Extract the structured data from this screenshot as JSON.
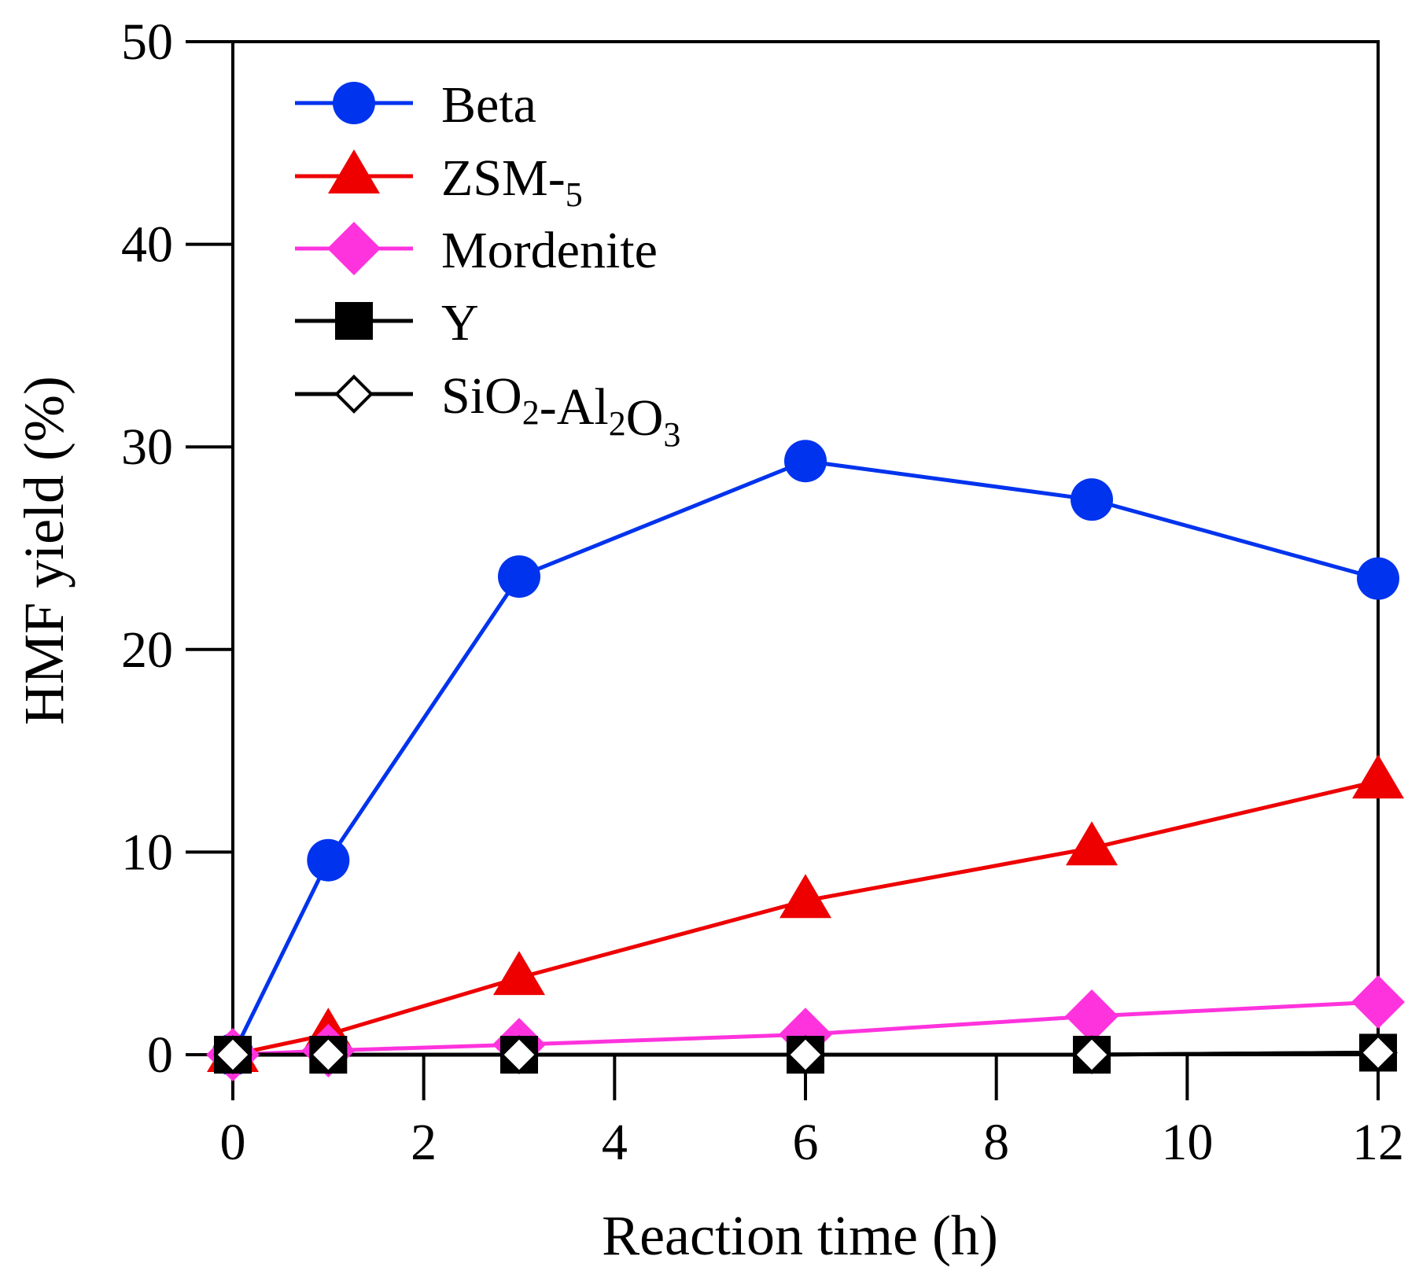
{
  "chart_data": {
    "type": "line",
    "title": "",
    "xlabel": "Reaction time (h)",
    "ylabel": "HMF yield (%)",
    "xlim": [
      0,
      12
    ],
    "ylim": [
      0,
      50
    ],
    "xticks": [
      0,
      2,
      4,
      6,
      8,
      10,
      12
    ],
    "yticks": [
      0,
      10,
      20,
      30,
      40,
      50
    ],
    "grid": false,
    "legend_position": "top-left",
    "x": [
      0,
      1,
      3,
      6,
      9,
      12
    ],
    "series": [
      {
        "name": "Beta",
        "color": "#0033ee",
        "marker": "circle",
        "values": [
          0,
          9.6,
          23.6,
          29.3,
          27.4,
          23.5
        ]
      },
      {
        "name": "ZSM-5",
        "color": "#ee0000",
        "marker": "triangle",
        "values": [
          0,
          1.0,
          3.8,
          7.6,
          10.2,
          13.5
        ]
      },
      {
        "name": "Mordenite",
        "color": "#ff33dd",
        "marker": "diamond",
        "values": [
          0,
          0.2,
          0.5,
          1.0,
          1.9,
          2.6
        ]
      },
      {
        "name": "Y",
        "color": "#000000",
        "marker": "square",
        "values": [
          0,
          0,
          0,
          0,
          0,
          0.1
        ]
      },
      {
        "name": "SiO2-Al2O3",
        "color": "#000000",
        "marker": "open-diamond",
        "values": [
          0,
          0,
          0,
          0,
          0,
          0.1
        ]
      }
    ]
  }
}
